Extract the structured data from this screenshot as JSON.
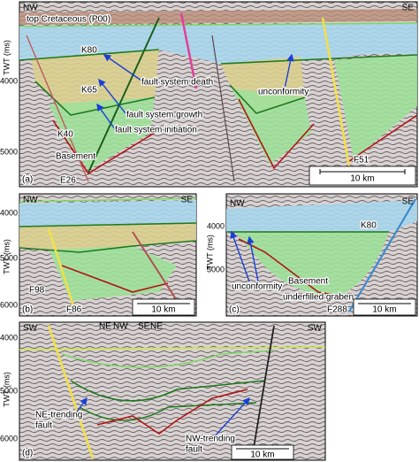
{
  "panels": [
    {
      "label": "(a)",
      "y_axis_label": "TWT (ms)",
      "yticks": [
        "4000",
        "5000"
      ],
      "directions": [
        "NW",
        "SE"
      ],
      "scale_bar": "10 km",
      "annotations": [
        "top Cretaceous (P00)",
        "K80",
        "K65",
        "K40",
        "Basement",
        "E26",
        "F51",
        "fault system death",
        "fault system growth",
        "fault system initiation",
        "unconformity"
      ]
    },
    {
      "label": "(b)",
      "y_axis_label": "TWT (ms)",
      "yticks": [
        "4000",
        "5000",
        "6000"
      ],
      "directions": [
        "NW",
        "SE"
      ],
      "scale_bar": "10 km",
      "annotations": [
        "F98",
        "F86"
      ]
    },
    {
      "label": "(c)",
      "y_axis_label": "TWT (ms)",
      "yticks": [
        "4000",
        "5000"
      ],
      "directions": [
        "NW",
        "SE"
      ],
      "scale_bar": "10 km",
      "annotations": [
        "K80",
        "unconformity",
        "Basement",
        "underfilled graben",
        "F288"
      ]
    },
    {
      "label": "(d)",
      "y_axis_label": "TWT (ms)",
      "yticks": [
        "4000",
        "5000",
        "6000"
      ],
      "directions": [
        "SW",
        "NE",
        "NW",
        "SE",
        "NE",
        "SW"
      ],
      "scale_bar": "10 km",
      "annotations": [
        [
          "NE-trending",
          "fault"
        ],
        [
          "NW-trending",
          "fault"
        ]
      ]
    }
  ]
}
